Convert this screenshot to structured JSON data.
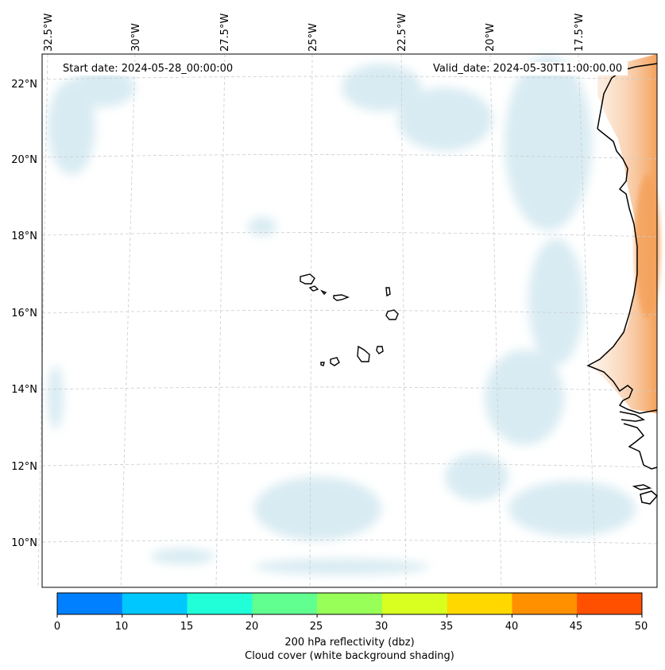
{
  "map": {
    "start_date": "Start date: 2024-05-28_00:00:00",
    "valid_date": "Valid_date: 2024-05-30T11:00:00.00",
    "lon_labels": [
      "32.5°W",
      "30°W",
      "27.5°W",
      "25°W",
      "22.5°W",
      "20°W",
      "17.5°W"
    ],
    "lat_labels": [
      "22°N",
      "20°N",
      "18°N",
      "16°N",
      "14°N",
      "12°N",
      "10°N"
    ]
  },
  "colorbar": {
    "ticks": [
      "0",
      "10",
      "15",
      "20",
      "25",
      "30",
      "35",
      "40",
      "45",
      "50"
    ],
    "colors": [
      "#0080ff",
      "#00c8ff",
      "#20ffd8",
      "#60ff90",
      "#98ff58",
      "#d8ff20",
      "#ffd800",
      "#ff9000",
      "#ff5000"
    ],
    "label_line1": "200 hPa reflectivity (dbz)",
    "label_line2": "Cloud cover (white background shading)"
  },
  "colors": {
    "cloud_shade": "#b9dce8",
    "land_heat": "#f4a15a",
    "coast": "#000000",
    "grid": "#cccccc"
  }
}
